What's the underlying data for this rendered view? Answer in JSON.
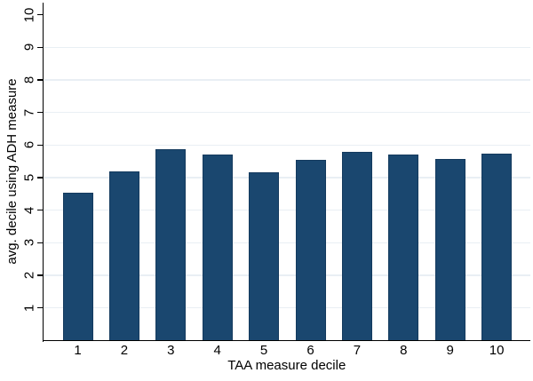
{
  "chart_data": {
    "type": "bar",
    "title": "",
    "xlabel": "TAA measure decile",
    "ylabel": "avg. decile using ADH measure",
    "categories": [
      "1",
      "2",
      "3",
      "4",
      "5",
      "6",
      "7",
      "8",
      "9",
      "10"
    ],
    "values": [
      4.53,
      5.18,
      5.88,
      5.71,
      5.15,
      5.54,
      5.79,
      5.7,
      5.57,
      5.74
    ],
    "ylim": [
      0,
      10.37
    ],
    "yticks": [
      1,
      2,
      3,
      4,
      5,
      6,
      7,
      8,
      9,
      10
    ],
    "gridlines_at": [
      1,
      2,
      3,
      4,
      5,
      6,
      7,
      8,
      9
    ],
    "grid": true,
    "legend": "none",
    "colors": {
      "bar_fill": "#1a476f",
      "bar_border": "#143a5e",
      "gridline": "#e9eff4",
      "axis": "#000000",
      "background": "#ffffff",
      "text": "#000000"
    }
  }
}
